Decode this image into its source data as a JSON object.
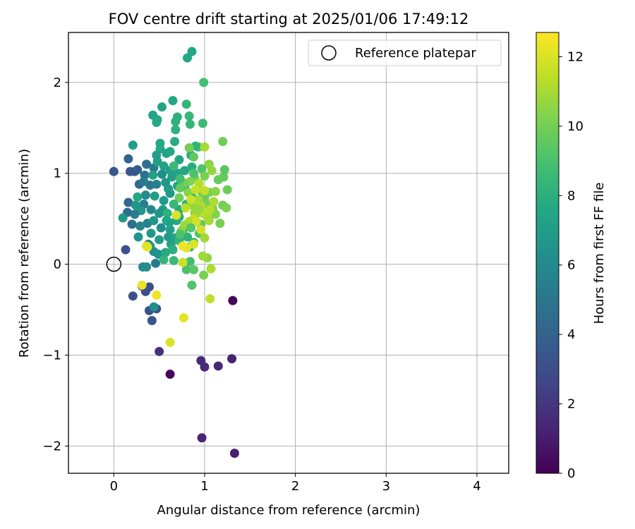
{
  "chart_data": {
    "type": "scatter",
    "title": "FOV centre drift starting at 2025/01/06 17:49:12",
    "xlabel": "Angular distance from reference (arcmin)",
    "ylabel": "Rotation from reference (arcmin)",
    "xlim": [
      -0.5,
      4.35
    ],
    "ylim": [
      -2.3,
      2.55
    ],
    "xticks": [
      0,
      1,
      2,
      3,
      4
    ],
    "yticks": [
      -2,
      -1,
      0,
      1,
      2
    ],
    "xtick_labels": [
      "0",
      "1",
      "2",
      "3",
      "4"
    ],
    "ytick_labels": [
      "−2",
      "−1",
      "0",
      "1",
      "2"
    ],
    "grid": true,
    "legend": {
      "placement": "top-right",
      "entries": [
        {
          "label": "Reference platepar",
          "marker": "open-circle"
        }
      ]
    },
    "reference_point": {
      "x": 0,
      "y": 0
    },
    "colorbar": {
      "label": "Hours from first FF file",
      "colormap": "viridis",
      "range": [
        0,
        12.7
      ],
      "ticks": [
        0,
        2,
        4,
        6,
        8,
        10,
        12
      ],
      "tick_labels": [
        "0",
        "2",
        "4",
        "6",
        "8",
        "10",
        "12"
      ]
    },
    "points": [
      {
        "x": 1.31,
        "y": -0.4,
        "c": 0.1
      },
      {
        "x": 1.33,
        "y": -2.08,
        "c": 1.0
      },
      {
        "x": 0.97,
        "y": -1.91,
        "c": 1.3
      },
      {
        "x": 0.62,
        "y": -1.21,
        "c": 0.3
      },
      {
        "x": 0.5,
        "y": -0.96,
        "c": 1.8
      },
      {
        "x": 0.96,
        "y": -1.06,
        "c": 1.5
      },
      {
        "x": 1.0,
        "y": -1.13,
        "c": 1.6
      },
      {
        "x": 1.15,
        "y": -1.12,
        "c": 1.4
      },
      {
        "x": 1.3,
        "y": -1.04,
        "c": 1.2
      },
      {
        "x": 0.0,
        "y": 1.02,
        "c": 3.5
      },
      {
        "x": 0.13,
        "y": 0.16,
        "c": 3.2
      },
      {
        "x": 0.21,
        "y": -0.35,
        "c": 3.1
      },
      {
        "x": 0.35,
        "y": -0.3,
        "c": 3.0
      },
      {
        "x": 0.39,
        "y": -0.25,
        "c": 3.0
      },
      {
        "x": 0.39,
        "y": -0.51,
        "c": 3.1
      },
      {
        "x": 0.42,
        "y": -0.62,
        "c": 3.4
      },
      {
        "x": 0.47,
        "y": -0.49,
        "c": 3.3
      },
      {
        "x": 0.31,
        "y": -0.24,
        "c": 3.1
      },
      {
        "x": 0.16,
        "y": 1.16,
        "c": 4.0
      },
      {
        "x": 0.23,
        "y": 1.02,
        "c": 3.6
      },
      {
        "x": 0.18,
        "y": 1.02,
        "c": 3.5
      },
      {
        "x": 0.26,
        "y": 1.04,
        "c": 3.6
      },
      {
        "x": 0.28,
        "y": 0.88,
        "c": 4.3
      },
      {
        "x": 0.16,
        "y": 0.68,
        "c": 4.2
      },
      {
        "x": 0.15,
        "y": 0.57,
        "c": 4.5
      },
      {
        "x": 0.2,
        "y": 0.44,
        "c": 4.6
      },
      {
        "x": 0.36,
        "y": 1.1,
        "c": 4.8
      },
      {
        "x": 0.34,
        "y": 0.98,
        "c": 4.8
      },
      {
        "x": 0.4,
        "y": 0.87,
        "c": 5.0
      },
      {
        "x": 0.44,
        "y": 1.06,
        "c": 5.2
      },
      {
        "x": 0.33,
        "y": 0.66,
        "c": 5.4
      },
      {
        "x": 0.37,
        "y": 0.45,
        "c": 5.6
      },
      {
        "x": 0.38,
        "y": 0.22,
        "c": 5.6
      },
      {
        "x": 0.46,
        "y": 0.01,
        "c": 5.2
      },
      {
        "x": 0.32,
        "y": -0.03,
        "c": 6.0
      },
      {
        "x": 0.36,
        "y": -0.03,
        "c": 6.1
      },
      {
        "x": 0.44,
        "y": -0.47,
        "c": 6.3
      },
      {
        "x": 0.27,
        "y": 0.3,
        "c": 6.4
      },
      {
        "x": 0.4,
        "y": 0.2,
        "c": 6.5
      },
      {
        "x": 0.44,
        "y": 0.14,
        "c": 6.2
      },
      {
        "x": 0.49,
        "y": 0.11,
        "c": 6.4
      },
      {
        "x": 0.3,
        "y": 0.59,
        "c": 6.6
      },
      {
        "x": 0.24,
        "y": 0.65,
        "c": 6.7
      },
      {
        "x": 0.1,
        "y": 0.51,
        "c": 6.8
      },
      {
        "x": 0.21,
        "y": 1.31,
        "c": 7.1
      },
      {
        "x": 0.43,
        "y": 1.64,
        "c": 7.3
      },
      {
        "x": 0.53,
        "y": 1.73,
        "c": 7.4
      },
      {
        "x": 0.65,
        "y": 1.8,
        "c": 7.5
      },
      {
        "x": 0.48,
        "y": 1.59,
        "c": 7.6
      },
      {
        "x": 0.47,
        "y": 1.56,
        "c": 7.7
      },
      {
        "x": 0.81,
        "y": 2.27,
        "c": 7.5
      },
      {
        "x": 0.86,
        "y": 2.34,
        "c": 7.6
      },
      {
        "x": 0.51,
        "y": 1.27,
        "c": 7.6
      },
      {
        "x": 0.51,
        "y": 1.33,
        "c": 7.6
      },
      {
        "x": 0.47,
        "y": 1.2,
        "c": 7.2
      },
      {
        "x": 0.48,
        "y": 1.13,
        "c": 7.1
      },
      {
        "x": 0.55,
        "y": 1.08,
        "c": 7.3
      },
      {
        "x": 0.58,
        "y": 1.22,
        "c": 7.2
      },
      {
        "x": 0.67,
        "y": 1.35,
        "c": 7.9
      },
      {
        "x": 0.7,
        "y": 1.62,
        "c": 8.0
      },
      {
        "x": 0.68,
        "y": 1.57,
        "c": 8.1
      },
      {
        "x": 0.8,
        "y": 1.76,
        "c": 8.3
      },
      {
        "x": 0.83,
        "y": 1.63,
        "c": 8.4
      },
      {
        "x": 0.68,
        "y": 1.48,
        "c": 8.1
      },
      {
        "x": 0.84,
        "y": 1.54,
        "c": 8.3
      },
      {
        "x": 0.99,
        "y": 2.0,
        "c": 8.9
      },
      {
        "x": 0.98,
        "y": 1.55,
        "c": 8.6
      },
      {
        "x": 0.93,
        "y": 1.29,
        "c": 8.9
      },
      {
        "x": 0.62,
        "y": 1.24,
        "c": 7.6
      },
      {
        "x": 0.72,
        "y": 1.15,
        "c": 7.4
      },
      {
        "x": 0.62,
        "y": 1.03,
        "c": 7.2
      },
      {
        "x": 0.64,
        "y": 0.96,
        "c": 7.0
      },
      {
        "x": 0.71,
        "y": 1.0,
        "c": 7.3
      },
      {
        "x": 0.78,
        "y": 1.03,
        "c": 7.5
      },
      {
        "x": 0.86,
        "y": 1.07,
        "c": 7.9
      },
      {
        "x": 0.85,
        "y": 1.2,
        "c": 7.8
      },
      {
        "x": 0.9,
        "y": 1.3,
        "c": 8.2
      },
      {
        "x": 0.43,
        "y": 0.98,
        "c": 7.2
      },
      {
        "x": 0.57,
        "y": 0.9,
        "c": 6.7
      },
      {
        "x": 0.62,
        "y": 0.78,
        "c": 6.8
      },
      {
        "x": 0.6,
        "y": 0.83,
        "c": 7.0
      },
      {
        "x": 0.7,
        "y": 0.86,
        "c": 7.4
      },
      {
        "x": 0.78,
        "y": 0.85,
        "c": 7.7
      },
      {
        "x": 0.54,
        "y": 0.6,
        "c": 6.9
      },
      {
        "x": 0.5,
        "y": 0.56,
        "c": 6.5
      },
      {
        "x": 0.44,
        "y": 0.48,
        "c": 6.6
      },
      {
        "x": 0.41,
        "y": 0.34,
        "c": 6.7
      },
      {
        "x": 0.5,
        "y": 0.27,
        "c": 7.0
      },
      {
        "x": 0.6,
        "y": 0.3,
        "c": 6.8
      },
      {
        "x": 0.62,
        "y": 0.38,
        "c": 7.1
      },
      {
        "x": 0.67,
        "y": 0.29,
        "c": 7.3
      },
      {
        "x": 0.63,
        "y": 0.22,
        "c": 7.2
      },
      {
        "x": 0.61,
        "y": 0.46,
        "c": 7.4
      },
      {
        "x": 0.69,
        "y": 0.48,
        "c": 7.6
      },
      {
        "x": 0.72,
        "y": 0.6,
        "c": 7.7
      },
      {
        "x": 0.72,
        "y": 0.52,
        "c": 7.8
      },
      {
        "x": 0.8,
        "y": 0.66,
        "c": 8.0
      },
      {
        "x": 0.86,
        "y": 0.74,
        "c": 8.2
      },
      {
        "x": 0.76,
        "y": 0.38,
        "c": 7.9
      },
      {
        "x": 0.81,
        "y": 0.3,
        "c": 8.1
      },
      {
        "x": 0.72,
        "y": 0.26,
        "c": 8.2
      },
      {
        "x": 0.84,
        "y": 0.19,
        "c": 8.3
      },
      {
        "x": 0.88,
        "y": 0.24,
        "c": 8.4
      },
      {
        "x": 0.65,
        "y": 0.16,
        "c": 8.0
      },
      {
        "x": 0.66,
        "y": 0.04,
        "c": 8.5
      },
      {
        "x": 0.55,
        "y": 0.05,
        "c": 8.4
      },
      {
        "x": 0.84,
        "y": 0.03,
        "c": 8.8
      },
      {
        "x": 0.8,
        "y": -0.06,
        "c": 9.0
      },
      {
        "x": 0.86,
        "y": -0.23,
        "c": 9.2
      },
      {
        "x": 0.88,
        "y": -0.06,
        "c": 9.4
      },
      {
        "x": 0.94,
        "y": 0.34,
        "c": 9.2
      },
      {
        "x": 0.96,
        "y": 0.44,
        "c": 9.4
      },
      {
        "x": 0.91,
        "y": 0.56,
        "c": 9.6
      },
      {
        "x": 1.0,
        "y": 0.72,
        "c": 9.8
      },
      {
        "x": 1.02,
        "y": 0.66,
        "c": 10.0
      },
      {
        "x": 0.97,
        "y": 0.79,
        "c": 9.8
      },
      {
        "x": 1.05,
        "y": 0.79,
        "c": 10.1
      },
      {
        "x": 1.09,
        "y": 0.61,
        "c": 10.2
      },
      {
        "x": 1.12,
        "y": 0.55,
        "c": 10.3
      },
      {
        "x": 1.17,
        "y": 0.45,
        "c": 10.1
      },
      {
        "x": 1.2,
        "y": 0.65,
        "c": 10.0
      },
      {
        "x": 1.24,
        "y": 0.62,
        "c": 10.2
      },
      {
        "x": 1.25,
        "y": 0.82,
        "c": 9.8
      },
      {
        "x": 1.21,
        "y": 0.96,
        "c": 9.6
      },
      {
        "x": 1.22,
        "y": 1.04,
        "c": 9.4
      },
      {
        "x": 1.2,
        "y": 1.35,
        "c": 9.9
      },
      {
        "x": 1.05,
        "y": 1.1,
        "c": 10.5
      },
      {
        "x": 1.0,
        "y": 1.29,
        "c": 11.0
      },
      {
        "x": 1.08,
        "y": 1.03,
        "c": 10.7
      },
      {
        "x": 0.97,
        "y": 1.05,
        "c": 9.2
      },
      {
        "x": 0.89,
        "y": 0.95,
        "c": 9.8
      },
      {
        "x": 0.84,
        "y": 0.91,
        "c": 10.3
      },
      {
        "x": 0.78,
        "y": 0.89,
        "c": 10.0
      },
      {
        "x": 0.73,
        "y": 0.84,
        "c": 9.6
      },
      {
        "x": 0.72,
        "y": 0.73,
        "c": 9.9
      },
      {
        "x": 0.82,
        "y": 0.79,
        "c": 10.4
      },
      {
        "x": 0.87,
        "y": 0.65,
        "c": 10.6
      },
      {
        "x": 0.89,
        "y": 0.57,
        "c": 10.8
      },
      {
        "x": 0.93,
        "y": 0.71,
        "c": 11.0
      },
      {
        "x": 0.96,
        "y": 0.64,
        "c": 11.2
      },
      {
        "x": 0.98,
        "y": 0.56,
        "c": 11.4
      },
      {
        "x": 1.03,
        "y": 0.52,
        "c": 11.2
      },
      {
        "x": 1.05,
        "y": 0.48,
        "c": 11.0
      },
      {
        "x": 1.06,
        "y": 0.6,
        "c": 11.3
      },
      {
        "x": 1.1,
        "y": 0.69,
        "c": 11.1
      },
      {
        "x": 1.0,
        "y": 0.81,
        "c": 11.5
      },
      {
        "x": 0.94,
        "y": 0.89,
        "c": 11.3
      },
      {
        "x": 0.9,
        "y": 0.82,
        "c": 11.6
      },
      {
        "x": 0.85,
        "y": 0.71,
        "c": 11.7
      },
      {
        "x": 0.88,
        "y": 0.5,
        "c": 11.5
      },
      {
        "x": 0.83,
        "y": 0.47,
        "c": 11.2
      },
      {
        "x": 0.78,
        "y": 0.43,
        "c": 10.8
      },
      {
        "x": 0.74,
        "y": 0.36,
        "c": 10.5
      },
      {
        "x": 0.79,
        "y": 0.62,
        "c": 11.4
      },
      {
        "x": 0.91,
        "y": 0.47,
        "c": 11.8
      },
      {
        "x": 0.96,
        "y": 0.38,
        "c": 11.9
      },
      {
        "x": 1.0,
        "y": 0.29,
        "c": 10.9
      },
      {
        "x": 1.03,
        "y": 0.07,
        "c": 10.6
      },
      {
        "x": 0.98,
        "y": 0.09,
        "c": 10.9
      },
      {
        "x": 0.99,
        "y": -0.12,
        "c": 10.2
      },
      {
        "x": 1.07,
        "y": -0.05,
        "c": 11.1
      },
      {
        "x": 1.06,
        "y": -0.38,
        "c": 11.5
      },
      {
        "x": 0.88,
        "y": 0.22,
        "c": 12.0
      },
      {
        "x": 0.8,
        "y": 0.18,
        "c": 12.2
      },
      {
        "x": 0.76,
        "y": 0.2,
        "c": 12.4
      },
      {
        "x": 0.76,
        "y": 0.02,
        "c": 11.7
      },
      {
        "x": 0.69,
        "y": 0.54,
        "c": 12.0
      },
      {
        "x": 0.37,
        "y": 0.19,
        "c": 12.6
      },
      {
        "x": 0.31,
        "y": -0.23,
        "c": 12.3
      },
      {
        "x": 0.47,
        "y": -0.34,
        "c": 12.4
      },
      {
        "x": 0.77,
        "y": -0.59,
        "c": 12.2
      },
      {
        "x": 0.62,
        "y": -0.86,
        "c": 12.0
      },
      {
        "x": 0.36,
        "y": 0.2,
        "c": 12.1
      },
      {
        "x": 0.45,
        "y": 0.75,
        "c": 7.0
      },
      {
        "x": 0.55,
        "y": 0.7,
        "c": 6.9
      },
      {
        "x": 0.35,
        "y": 0.76,
        "c": 6.0
      },
      {
        "x": 0.26,
        "y": 0.74,
        "c": 7.6
      },
      {
        "x": 0.23,
        "y": 0.55,
        "c": 5.2
      },
      {
        "x": 0.29,
        "y": 0.42,
        "c": 5.8
      },
      {
        "x": 0.47,
        "y": 0.88,
        "c": 5.5
      },
      {
        "x": 0.53,
        "y": 0.99,
        "c": 6.2
      },
      {
        "x": 0.66,
        "y": 1.08,
        "c": 8.6
      },
      {
        "x": 0.73,
        "y": 0.94,
        "c": 8.8
      },
      {
        "x": 0.66,
        "y": 0.66,
        "c": 8.4
      },
      {
        "x": 0.59,
        "y": 0.56,
        "c": 8.1
      },
      {
        "x": 0.73,
        "y": 0.33,
        "c": 9.0
      },
      {
        "x": 0.85,
        "y": 0.4,
        "c": 9.3
      },
      {
        "x": 0.94,
        "y": 0.6,
        "c": 10.7
      },
      {
        "x": 1.12,
        "y": 0.8,
        "c": 10.4
      },
      {
        "x": 1.15,
        "y": 0.93,
        "c": 9.7
      },
      {
        "x": 1.0,
        "y": 0.97,
        "c": 10.1
      },
      {
        "x": 0.88,
        "y": 1.0,
        "c": 9.1
      },
      {
        "x": 0.83,
        "y": 1.28,
        "c": 10.0
      },
      {
        "x": 0.88,
        "y": 1.18,
        "c": 9.5
      },
      {
        "x": 0.57,
        "y": 0.13,
        "c": 7.8
      },
      {
        "x": 0.58,
        "y": 0.48,
        "c": 7.5
      },
      {
        "x": 0.52,
        "y": 0.4,
        "c": 6.3
      },
      {
        "x": 0.41,
        "y": 0.6,
        "c": 5.8
      },
      {
        "x": 0.33,
        "y": 0.91,
        "c": 5.3
      }
    ]
  }
}
